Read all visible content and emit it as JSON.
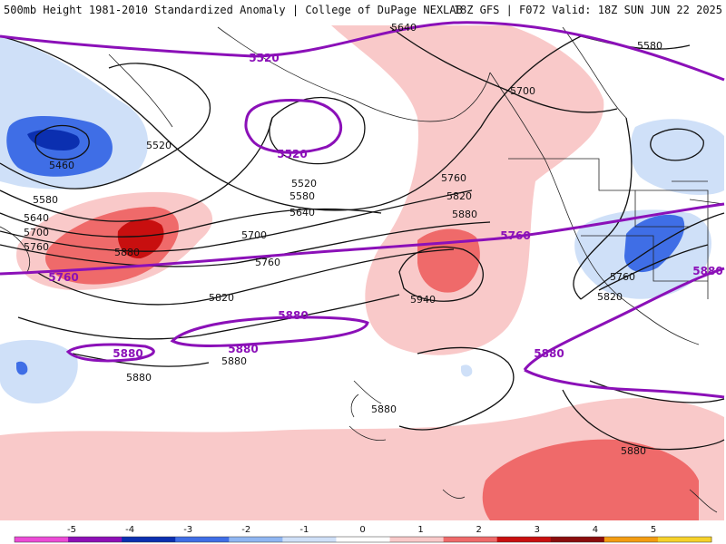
{
  "header": {
    "title_left": "500mb Height 1981-2010 Standardized Anomaly | College of DuPage NEXLAB",
    "title_right": "18Z GFS | F072 Valid: 18Z SUN JUN 22 2025"
  },
  "colors": {
    "anom_-4": "#0b2fb0",
    "anom_-3": "#3f6ee6",
    "anom_-2": "#8fb6f2",
    "anom_-1": "#cfe0f8",
    "anom_1": "#f9c9c9",
    "anom_2": "#ef6a6a",
    "anom_3": "#c80f0f",
    "contour_black": "#111111",
    "contour_purple": "#8b10b8",
    "coastline": "#222222"
  },
  "map": {
    "black_contour_labels": [
      "5640",
      "5580",
      "5700",
      "5520",
      "5460",
      "5580",
      "5640",
      "5700",
      "5760",
      "5880",
      "5520",
      "5580",
      "5640",
      "5700",
      "5760",
      "5820",
      "5760",
      "5820",
      "5880",
      "5940",
      "5820",
      "5760",
      "5880",
      "5880",
      "5880",
      "5880"
    ],
    "purple_contour_labels": [
      "5520",
      "5520",
      "5760",
      "5760",
      "5880",
      "5880",
      "5880",
      "5880",
      "5880"
    ]
  },
  "colorbar": {
    "ticks": [
      "-5",
      "-4",
      "-3",
      "-2",
      "-1",
      "0",
      "1",
      "2",
      "3",
      "4",
      "5"
    ],
    "colors": [
      "#ec4bd6",
      "#8d0fb6",
      "#0b2fb0",
      "#3f6ee6",
      "#8fb6f2",
      "#cfe0f8",
      "#ffffff",
      "#f9c9c9",
      "#ef6a6a",
      "#c80f0f",
      "#8a0d0d",
      "#f39c12",
      "#f6d12a"
    ]
  }
}
